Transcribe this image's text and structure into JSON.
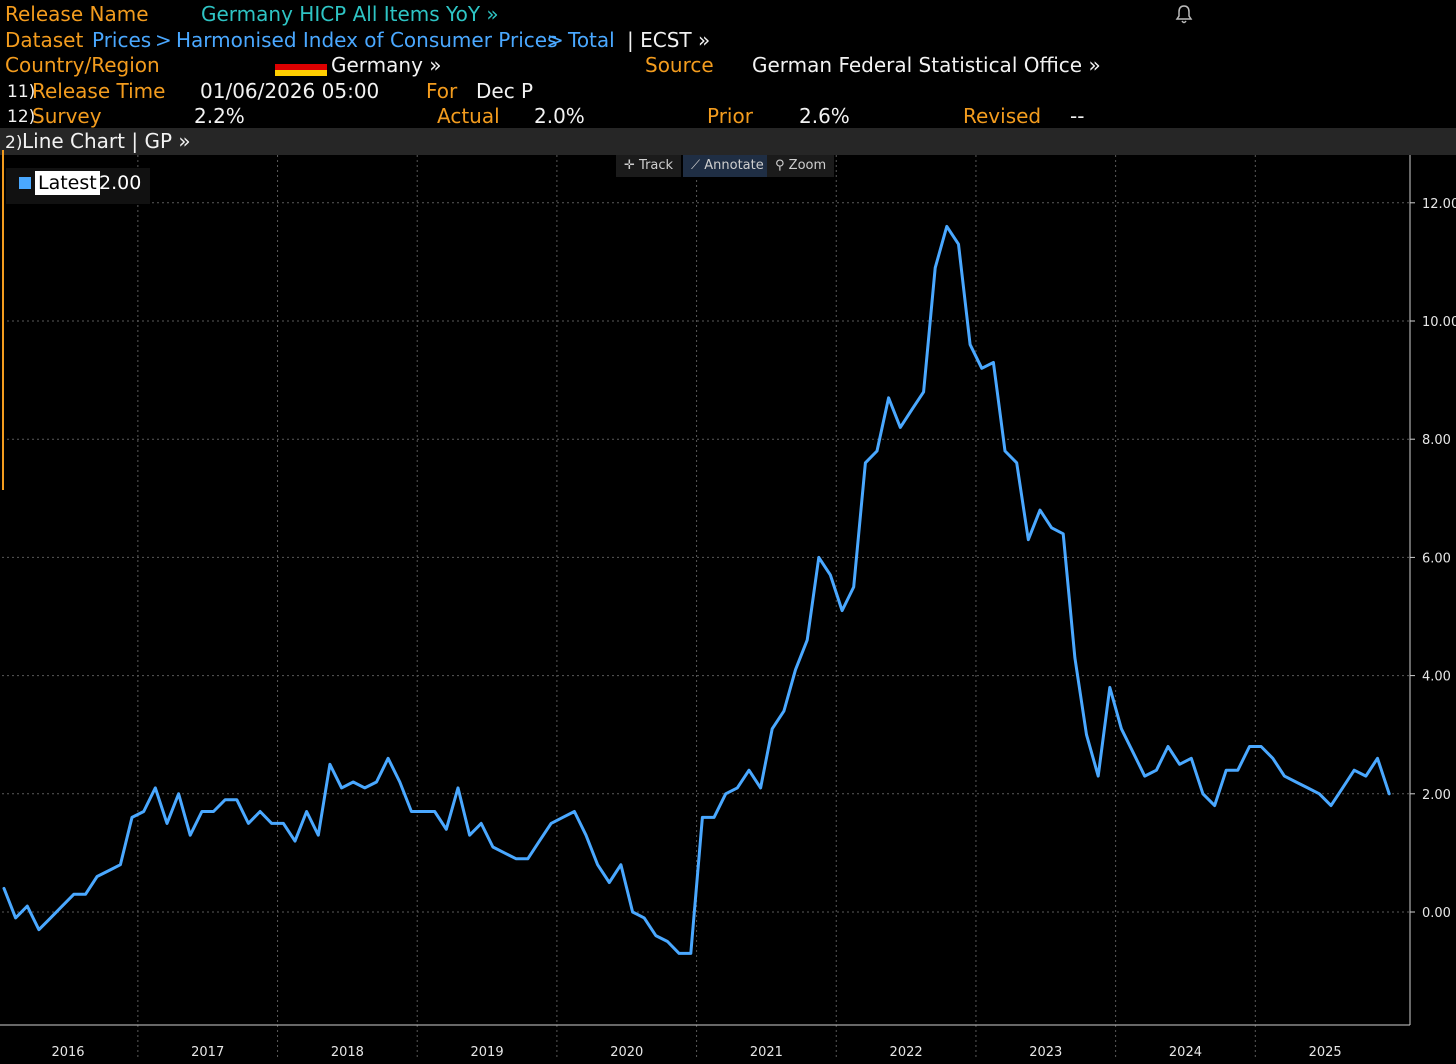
{
  "header": {
    "release_name_label": "Release Name",
    "release_name_value": "Germany HICP All Items YoY »",
    "dataset_label": "Dataset",
    "dataset_path": [
      "Prices",
      "Harmonised Index of Consumer Prices",
      "Total"
    ],
    "dataset_sep": ">",
    "dataset_suffix": "| ECST »",
    "country_label": "Country/Region",
    "country_value": "Germany »",
    "source_label": "Source",
    "source_value": "German Federal Statistical Office »",
    "release_time_num": "11)",
    "release_time_label": "Release Time",
    "release_time_value": "01/06/2026 05:00",
    "for_label": "For",
    "for_value": "Dec P",
    "survey_num": "12)",
    "survey_label": "Survey",
    "survey_value": "2.2%",
    "actual_label": "Actual",
    "actual_value": "2.0%",
    "prior_label": "Prior",
    "prior_value": "2.6%",
    "revised_label": "Revised",
    "revised_value": "--"
  },
  "toolbar": {
    "num": "2)",
    "label": "Line Chart | GP »",
    "track": "Track",
    "annotate": "Annotate",
    "zoom": "Zoom"
  },
  "legend": {
    "label": "Latest",
    "value": "2.00"
  },
  "colors": {
    "accent": "#4aa8ff",
    "label_orange": "#f39c1e",
    "teal": "#2ec4c4",
    "flag_black": "#000000",
    "flag_red": "#dd0000",
    "flag_gold": "#ffce00"
  },
  "chart_data": {
    "type": "line",
    "title": "Germany HICP All Items YoY",
    "xlabel": "",
    "ylabel": "",
    "ylim": [
      -1.9,
      12.8
    ],
    "yticks": [
      0,
      2,
      4,
      6,
      8,
      10,
      12
    ],
    "ytick_labels": [
      "0.00",
      "2.00",
      "4.00",
      "6.00",
      "8.00",
      "10.00",
      "12.00"
    ],
    "year_labels": [
      "2016",
      "2017",
      "2018",
      "2019",
      "2020",
      "2021",
      "2022",
      "2023",
      "2024",
      "2025"
    ],
    "start": "2016-01",
    "end": "2025-12",
    "grid": true,
    "series": [
      {
        "name": "Latest",
        "values": [
          0.4,
          -0.1,
          0.1,
          -0.3,
          -0.1,
          0.1,
          0.3,
          0.3,
          0.6,
          0.7,
          0.8,
          1.6,
          1.7,
          2.1,
          1.5,
          2.0,
          1.3,
          1.7,
          1.7,
          1.9,
          1.9,
          1.5,
          1.7,
          1.5,
          1.5,
          1.2,
          1.7,
          1.3,
          2.5,
          2.1,
          2.2,
          2.1,
          2.2,
          2.6,
          2.2,
          1.7,
          1.7,
          1.7,
          1.4,
          2.1,
          1.3,
          1.5,
          1.1,
          1.0,
          0.9,
          0.9,
          1.2,
          1.5,
          1.6,
          1.7,
          1.3,
          0.8,
          0.5,
          0.8,
          0.0,
          -0.1,
          -0.4,
          -0.5,
          -0.7,
          -0.7,
          1.6,
          1.6,
          2.0,
          2.1,
          2.4,
          2.1,
          3.1,
          3.4,
          4.1,
          4.6,
          6.0,
          5.7,
          5.1,
          5.5,
          7.6,
          7.8,
          8.7,
          8.2,
          8.5,
          8.8,
          10.9,
          11.6,
          11.3,
          9.6,
          9.2,
          9.3,
          7.8,
          7.6,
          6.3,
          6.8,
          6.5,
          6.4,
          4.3,
          3.0,
          2.3,
          3.8,
          3.1,
          2.7,
          2.3,
          2.4,
          2.8,
          2.5,
          2.6,
          2.0,
          1.8,
          2.4,
          2.4,
          2.8,
          2.8,
          2.6,
          2.3,
          2.2,
          2.1,
          2.0,
          1.8,
          2.1,
          2.4,
          2.3,
          2.6,
          2.0
        ]
      }
    ]
  }
}
